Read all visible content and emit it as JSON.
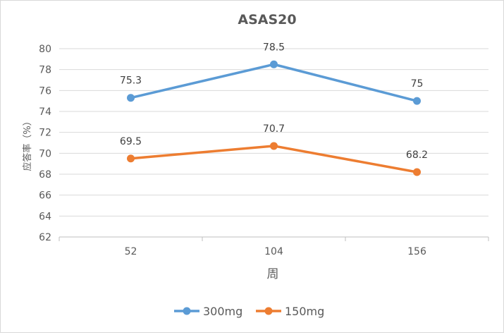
{
  "chart_data": {
    "type": "line",
    "title": "ASAS20",
    "xlabel": "周",
    "ylabel": "应答率（%）",
    "categories": [
      "52",
      "104",
      "156"
    ],
    "ylim": [
      62,
      80
    ],
    "ytick_step": 2,
    "grid": true,
    "legend_position": "bottom",
    "series": [
      {
        "name": "300mg",
        "values": [
          75.3,
          78.5,
          75
        ],
        "labels": [
          "75.3",
          "78.5",
          "75"
        ],
        "color": "#5B9BD5"
      },
      {
        "name": "150mg",
        "values": [
          69.5,
          70.7,
          68.2
        ],
        "labels": [
          "69.5",
          "70.7",
          "68.2"
        ],
        "color": "#ED7D31"
      }
    ]
  }
}
